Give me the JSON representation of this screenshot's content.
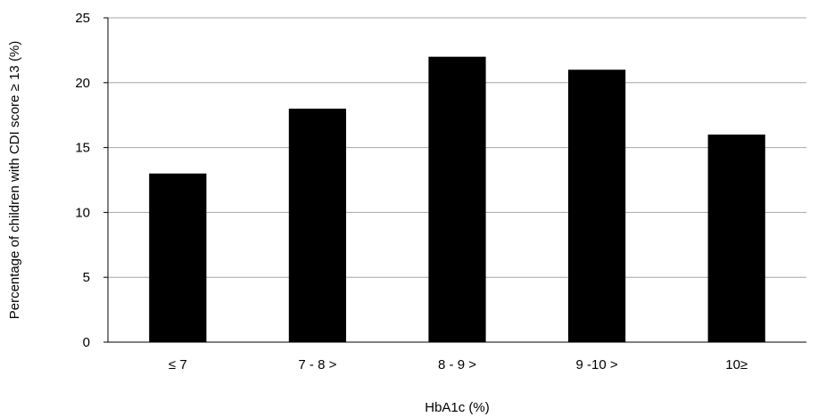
{
  "chart_data": {
    "type": "bar",
    "categories": [
      "≤ 7",
      "7 - 8 >",
      "8 - 9 >",
      "9 -10 >",
      "10≥"
    ],
    "series": [
      {
        "values": [
          13,
          18,
          22,
          21,
          16
        ]
      }
    ],
    "title": "",
    "xlabel": "HbA1c (%)",
    "ylabel": "Percentage of children with CDI score ≥ 13 (%)",
    "ylim": [
      0,
      25
    ],
    "yticks": [
      0,
      5,
      10,
      15,
      20,
      25
    ],
    "grid": true,
    "legend": "none",
    "colors": {
      "bar": "#000000",
      "grid": "#a6a6a6",
      "axis": "#000000"
    }
  }
}
